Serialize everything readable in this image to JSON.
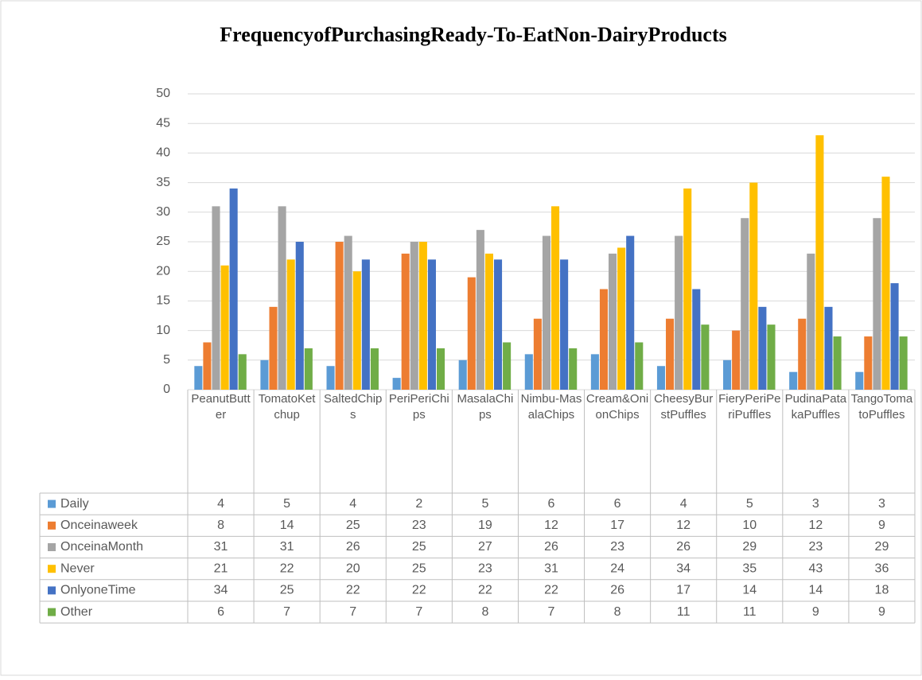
{
  "chart_data": {
    "type": "bar",
    "title": "FrequencyofPurchasingReady-To-EatNon-DairyProducts",
    "categories": [
      "PeanutButter",
      "TomatoKetchup",
      "SaltedChips",
      "PeriPeriChips",
      "MasalaChips",
      "Nimbu-MasalaChips",
      "Cream&OnionChips",
      "CheesyBurstPuffles",
      "FieryPeriPeriPuffles",
      "PudinaPatakaPuffles",
      "TangoTomatoPuffles"
    ],
    "series": [
      {
        "name": "Daily",
        "color": "#5b9bd5",
        "values": [
          4,
          5,
          4,
          2,
          5,
          6,
          6,
          4,
          5,
          3,
          3
        ]
      },
      {
        "name": "Onceinaweek",
        "color": "#ed7d31",
        "values": [
          8,
          14,
          25,
          23,
          19,
          12,
          17,
          12,
          10,
          12,
          9
        ]
      },
      {
        "name": "OnceinaMonth",
        "color": "#a5a5a5",
        "values": [
          31,
          31,
          26,
          25,
          27,
          26,
          23,
          26,
          29,
          23,
          29
        ]
      },
      {
        "name": "Never",
        "color": "#ffc000",
        "values": [
          21,
          22,
          20,
          25,
          23,
          31,
          24,
          34,
          35,
          43,
          36
        ]
      },
      {
        "name": "OnlyoneTime",
        "color": "#4472c4",
        "values": [
          34,
          25,
          22,
          22,
          22,
          22,
          26,
          17,
          14,
          14,
          18
        ]
      },
      {
        "name": "Other",
        "color": "#70ad47",
        "values": [
          6,
          7,
          7,
          7,
          8,
          7,
          8,
          11,
          11,
          9,
          9
        ]
      }
    ],
    "ylim": [
      0,
      50
    ],
    "yticks": [
      0,
      5,
      10,
      15,
      20,
      25,
      30,
      35,
      40,
      45,
      50
    ],
    "grid": true
  }
}
